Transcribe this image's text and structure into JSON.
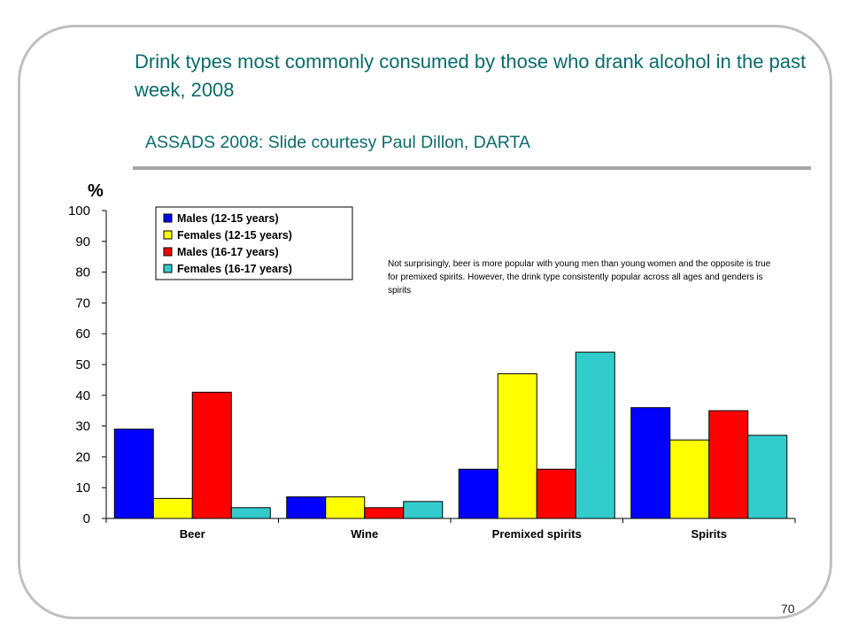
{
  "slide": {
    "title": "Drink types most commonly consumed by those who drank alcohol in the past week, 2008",
    "subtitle": "ASSADS 2008: Slide courtesy Paul Dillon, DARTA",
    "page_number": "70",
    "note": "Not surprisingly, beer is more popular with young men than young women and the opposite is true for premixed spirits. However, the drink type consistently popular across all ages and genders is spirits"
  },
  "chart_data": {
    "type": "bar",
    "title": "",
    "xlabel": "",
    "ylabel": "%",
    "ylim": [
      0,
      100
    ],
    "yticks": [
      "0",
      "10",
      "20",
      "30",
      "40",
      "50",
      "60",
      "70",
      "80",
      "90",
      "100"
    ],
    "grid": false,
    "legend_position": "top-left",
    "categories": [
      "Beer",
      "Wine",
      "Premixed spirits",
      "Spirits"
    ],
    "series": [
      {
        "name": "Males (12-15 years)",
        "color": "#0000ff",
        "values": [
          29,
          7,
          16,
          36
        ]
      },
      {
        "name": "Females (12-15 years)",
        "color": "#ffff00",
        "values": [
          6.5,
          7,
          47,
          25.5
        ]
      },
      {
        "name": "Males (16-17 years)",
        "color": "#ff0000",
        "values": [
          41,
          3.5,
          16,
          35
        ]
      },
      {
        "name": "Females (16-17 years)",
        "color": "#33cccc",
        "values": [
          3.5,
          5.5,
          54,
          27
        ]
      }
    ]
  }
}
